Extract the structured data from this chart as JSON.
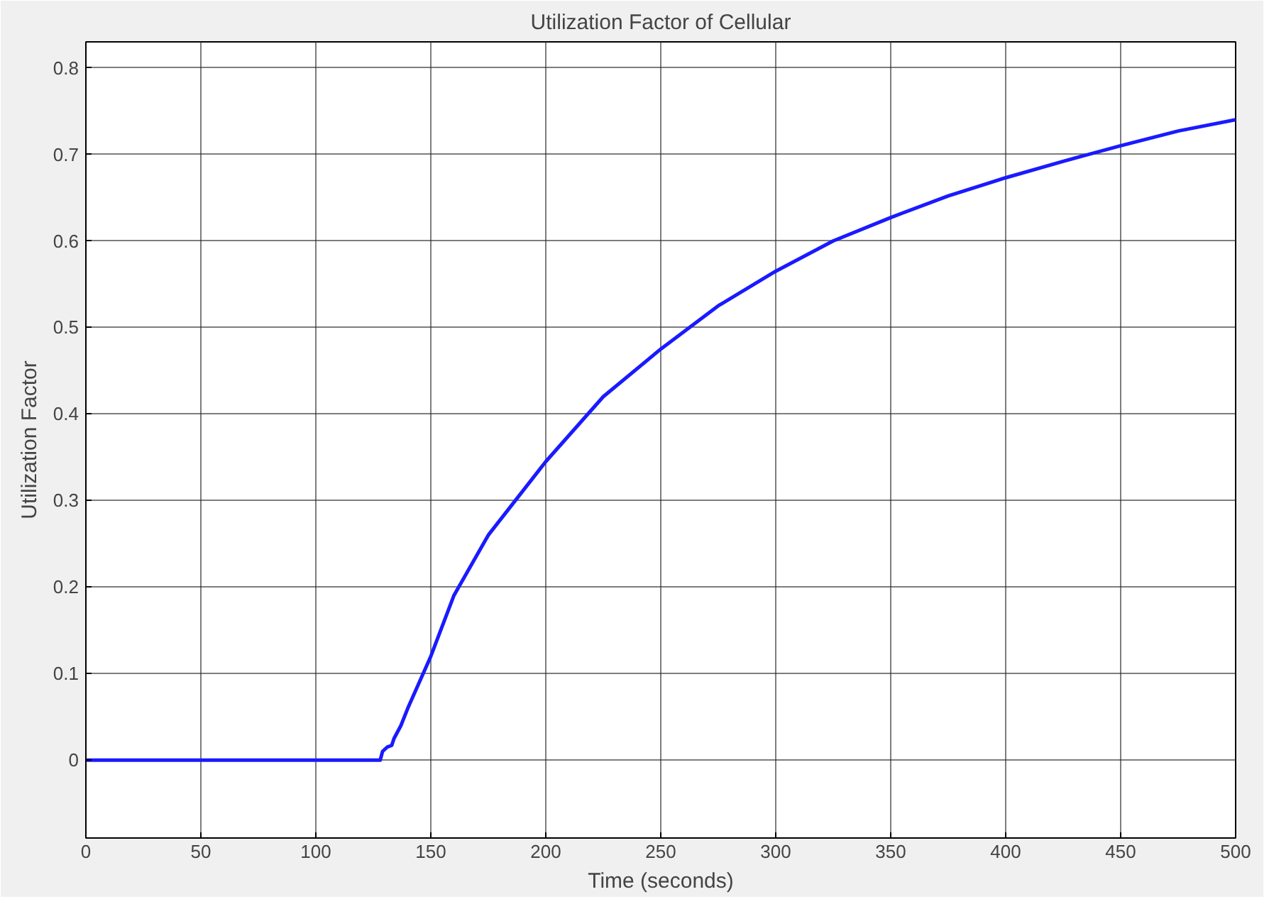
{
  "chart_data": {
    "type": "line",
    "title": "Utilization Factor of Cellular",
    "xlabel": "Time (seconds)",
    "ylabel": "Utilization Factor",
    "xlim": [
      0,
      500
    ],
    "ylim": [
      -0.09,
      0.83
    ],
    "xticks": [
      0,
      50,
      100,
      150,
      200,
      250,
      300,
      350,
      400,
      450,
      500
    ],
    "yticks": [
      0,
      0.1,
      0.2,
      0.3,
      0.4,
      0.5,
      0.6,
      0.7,
      0.8
    ],
    "grid": true,
    "line_style": "solid",
    "marker": "none",
    "series": [
      {
        "color": "#1a1aff",
        "x": [
          0,
          50,
          100,
          128,
          129,
          131,
          133,
          134,
          137,
          140,
          145,
          150,
          160,
          175,
          200,
          225,
          250,
          275,
          300,
          325,
          350,
          375,
          400,
          425,
          450,
          475,
          500
        ],
        "values": [
          0,
          0,
          0,
          0,
          0.01,
          0.015,
          0.017,
          0.025,
          0.04,
          0.06,
          0.09,
          0.12,
          0.19,
          0.26,
          0.345,
          0.42,
          0.475,
          0.525,
          0.565,
          0.6,
          0.627,
          0.652,
          0.673,
          0.692,
          0.71,
          0.727,
          0.74
        ]
      }
    ]
  }
}
